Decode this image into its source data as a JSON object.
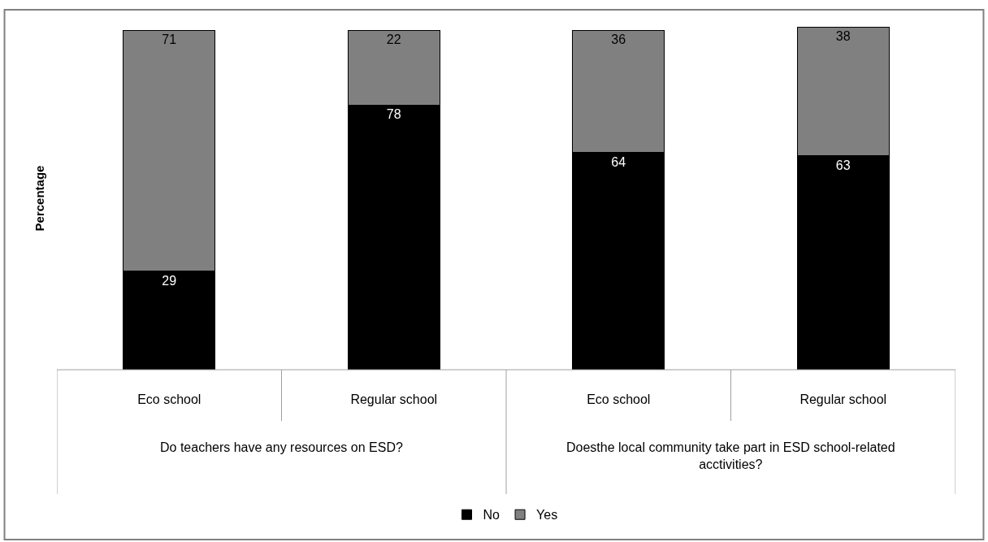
{
  "chart_data": {
    "type": "bar",
    "stacked": true,
    "ylabel": "Percentage",
    "categories": [
      "Eco school",
      "Regular school",
      "Eco school",
      "Regular school"
    ],
    "annotations": [
      "Do teachers have any resources on ESD?",
      "Doesthe local community take part in ESD school-related acctivities?"
    ],
    "series": [
      {
        "name": "No",
        "color": "#000000",
        "values": [
          29,
          78,
          64,
          63
        ]
      },
      {
        "name": "Yes",
        "color": "#808080",
        "values": [
          71,
          22,
          36,
          38
        ]
      }
    ],
    "data_labels": true,
    "legend": "bottom"
  }
}
